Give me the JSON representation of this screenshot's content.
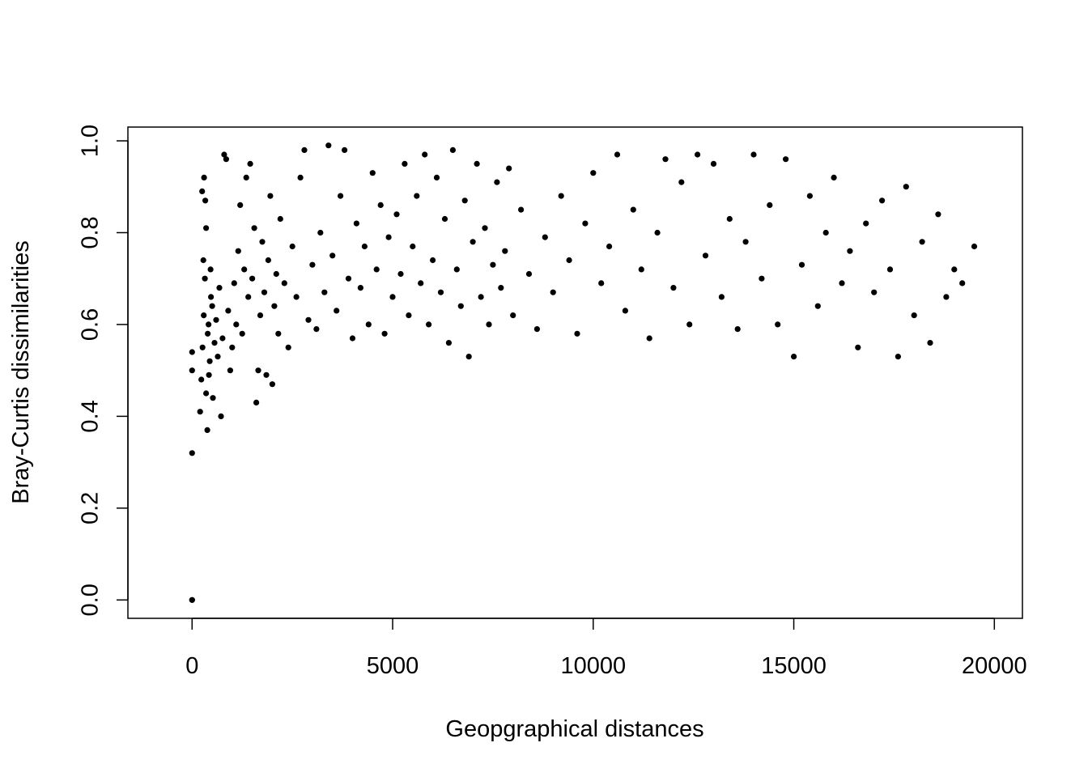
{
  "chart_data": {
    "type": "scatter",
    "title": "",
    "xlabel": "Geopgraphical distances",
    "ylabel": "Bray-Curtis dissimilarities",
    "xlim": [
      -1600,
      20700
    ],
    "ylim": [
      -0.04,
      1.03
    ],
    "x_ticks": [
      0,
      5000,
      10000,
      15000,
      20000
    ],
    "x_tick_labels": [
      "0",
      "5000",
      "10000",
      "15000",
      "20000"
    ],
    "y_ticks": [
      0.0,
      0.2,
      0.4,
      0.6,
      0.8,
      1.0
    ],
    "y_tick_labels": [
      "0.0",
      "0.2",
      "0.4",
      "0.6",
      "0.8",
      "1.0"
    ],
    "grid": false,
    "legend": "none",
    "point_color": "#000000",
    "series": [
      {
        "points": [
          [
            0,
            0.0
          ],
          [
            0,
            0.0
          ],
          [
            0,
            0.32
          ],
          [
            0,
            0.5
          ],
          [
            0,
            0.54
          ],
          [
            200,
            0.41
          ],
          [
            230,
            0.48
          ],
          [
            260,
            0.55
          ],
          [
            290,
            0.62
          ],
          [
            320,
            0.7
          ],
          [
            350,
            0.45
          ],
          [
            380,
            0.37
          ],
          [
            410,
            0.6
          ],
          [
            440,
            0.52
          ],
          [
            470,
            0.66
          ],
          [
            250,
            0.89
          ],
          [
            300,
            0.92
          ],
          [
            330,
            0.87
          ],
          [
            280,
            0.74
          ],
          [
            350,
            0.81
          ],
          [
            390,
            0.58
          ],
          [
            420,
            0.49
          ],
          [
            460,
            0.72
          ],
          [
            500,
            0.64
          ],
          [
            520,
            0.44
          ],
          [
            560,
            0.56
          ],
          [
            600,
            0.61
          ],
          [
            640,
            0.53
          ],
          [
            680,
            0.68
          ],
          [
            720,
            0.4
          ],
          [
            760,
            0.57
          ],
          [
            800,
            0.97
          ],
          [
            850,
            0.96
          ],
          [
            900,
            0.63
          ],
          [
            950,
            0.5
          ],
          [
            1000,
            0.55
          ],
          [
            1050,
            0.69
          ],
          [
            1100,
            0.6
          ],
          [
            1150,
            0.76
          ],
          [
            1200,
            0.86
          ],
          [
            1250,
            0.58
          ],
          [
            1300,
            0.72
          ],
          [
            1350,
            0.92
          ],
          [
            1400,
            0.66
          ],
          [
            1450,
            0.95
          ],
          [
            1500,
            0.7
          ],
          [
            1550,
            0.81
          ],
          [
            1600,
            0.43
          ],
          [
            1650,
            0.5
          ],
          [
            1700,
            0.62
          ],
          [
            1750,
            0.78
          ],
          [
            1800,
            0.67
          ],
          [
            1850,
            0.49
          ],
          [
            1900,
            0.74
          ],
          [
            1950,
            0.88
          ],
          [
            2000,
            0.47
          ],
          [
            2050,
            0.64
          ],
          [
            2100,
            0.71
          ],
          [
            2150,
            0.58
          ],
          [
            2200,
            0.83
          ],
          [
            2300,
            0.69
          ],
          [
            2400,
            0.55
          ],
          [
            2500,
            0.77
          ],
          [
            2600,
            0.66
          ],
          [
            2700,
            0.92
          ],
          [
            2800,
            0.98
          ],
          [
            2900,
            0.61
          ],
          [
            3000,
            0.73
          ],
          [
            3100,
            0.59
          ],
          [
            3200,
            0.8
          ],
          [
            3300,
            0.67
          ],
          [
            3400,
            0.99
          ],
          [
            3500,
            0.75
          ],
          [
            3600,
            0.63
          ],
          [
            3700,
            0.88
          ],
          [
            3800,
            0.98
          ],
          [
            3900,
            0.7
          ],
          [
            4000,
            0.57
          ],
          [
            4100,
            0.82
          ],
          [
            4200,
            0.68
          ],
          [
            4300,
            0.77
          ],
          [
            4400,
            0.6
          ],
          [
            4500,
            0.93
          ],
          [
            4600,
            0.72
          ],
          [
            4700,
            0.86
          ],
          [
            4800,
            0.58
          ],
          [
            4900,
            0.79
          ],
          [
            5000,
            0.66
          ],
          [
            5100,
            0.84
          ],
          [
            5200,
            0.71
          ],
          [
            5300,
            0.95
          ],
          [
            5400,
            0.62
          ],
          [
            5500,
            0.77
          ],
          [
            5600,
            0.88
          ],
          [
            5700,
            0.69
          ],
          [
            5800,
            0.97
          ],
          [
            5900,
            0.6
          ],
          [
            6000,
            0.74
          ],
          [
            6100,
            0.92
          ],
          [
            6200,
            0.67
          ],
          [
            6300,
            0.83
          ],
          [
            6400,
            0.56
          ],
          [
            6500,
            0.98
          ],
          [
            6600,
            0.72
          ],
          [
            6700,
            0.64
          ],
          [
            6800,
            0.87
          ],
          [
            6900,
            0.53
          ],
          [
            7000,
            0.78
          ],
          [
            7100,
            0.95
          ],
          [
            7200,
            0.66
          ],
          [
            7300,
            0.81
          ],
          [
            7400,
            0.6
          ],
          [
            7500,
            0.73
          ],
          [
            7600,
            0.91
          ],
          [
            7700,
            0.68
          ],
          [
            7800,
            0.76
          ],
          [
            7900,
            0.94
          ],
          [
            8000,
            0.62
          ],
          [
            8200,
            0.85
          ],
          [
            8400,
            0.71
          ],
          [
            8600,
            0.59
          ],
          [
            8800,
            0.79
          ],
          [
            9000,
            0.67
          ],
          [
            9200,
            0.88
          ],
          [
            9400,
            0.74
          ],
          [
            9600,
            0.58
          ],
          [
            9800,
            0.82
          ],
          [
            10000,
            0.93
          ],
          [
            10200,
            0.69
          ],
          [
            10400,
            0.77
          ],
          [
            10600,
            0.97
          ],
          [
            10800,
            0.63
          ],
          [
            11000,
            0.85
          ],
          [
            11200,
            0.72
          ],
          [
            11400,
            0.57
          ],
          [
            11600,
            0.8
          ],
          [
            11800,
            0.96
          ],
          [
            12000,
            0.68
          ],
          [
            12200,
            0.91
          ],
          [
            12400,
            0.6
          ],
          [
            12600,
            0.97
          ],
          [
            12800,
            0.75
          ],
          [
            13000,
            0.95
          ],
          [
            13200,
            0.66
          ],
          [
            13400,
            0.83
          ],
          [
            13600,
            0.59
          ],
          [
            13800,
            0.78
          ],
          [
            14000,
            0.97
          ],
          [
            14200,
            0.7
          ],
          [
            14400,
            0.86
          ],
          [
            14600,
            0.6
          ],
          [
            14800,
            0.96
          ],
          [
            15000,
            0.53
          ],
          [
            15200,
            0.73
          ],
          [
            15400,
            0.88
          ],
          [
            15600,
            0.64
          ],
          [
            15800,
            0.8
          ],
          [
            16000,
            0.92
          ],
          [
            16200,
            0.69
          ],
          [
            16400,
            0.76
          ],
          [
            16600,
            0.55
          ],
          [
            16800,
            0.82
          ],
          [
            17000,
            0.67
          ],
          [
            17200,
            0.87
          ],
          [
            17400,
            0.72
          ],
          [
            17600,
            0.53
          ],
          [
            17800,
            0.9
          ],
          [
            18000,
            0.62
          ],
          [
            18200,
            0.78
          ],
          [
            18400,
            0.56
          ],
          [
            18600,
            0.84
          ],
          [
            18800,
            0.66
          ],
          [
            19000,
            0.72
          ],
          [
            19200,
            0.69
          ],
          [
            19500,
            0.77
          ]
        ]
      }
    ]
  }
}
